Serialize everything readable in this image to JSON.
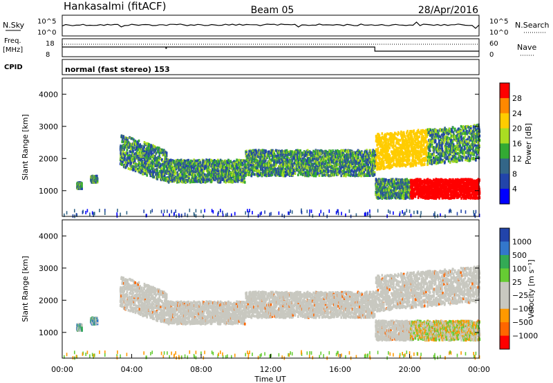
{
  "header": {
    "station": "Hankasalmi (fitACF)",
    "beam": "Beam 05",
    "date": "28/Apr/2016"
  },
  "top_panels": {
    "nsky_label": "N.Sky",
    "nsearch_label": "N.Search",
    "freq_label_line1": "Freq.",
    "freq_label_line2": "[MHz]",
    "nave_label": "Nave",
    "cpid_label": "CPID",
    "cpid_text": "normal (fast stereo) 153",
    "noise_ticks_left": [
      "10^5",
      "10^0"
    ],
    "noise_ticks_right": [
      "10^5",
      "10^0"
    ],
    "freq_ticks_left": [
      "18",
      "8"
    ],
    "nave_ticks_right": [
      "60",
      "0"
    ]
  },
  "chart_data": [
    {
      "type": "heatmap",
      "panel": "power",
      "ylabel": "Slant Range [km]",
      "ylim": [
        200,
        4500
      ],
      "y_ticks": [
        "4000",
        "3000",
        "2000",
        "1000"
      ],
      "colorbar_label": "Power [dB]",
      "colorbar_ticks": [
        "28",
        "24",
        "20",
        "16",
        "12",
        "8",
        "4"
      ],
      "colorbar_colors": [
        "#ff0000",
        "#ff8800",
        "#ffcc00",
        "#aadd22",
        "#33aa33",
        "#336688",
        "#2244aa",
        "#0000ff"
      ],
      "echo_bands_hours_km": [
        {
          "t0": 0.8,
          "t1": 1.1,
          "r0": 1100,
          "r1": 1300
        },
        {
          "t0": 1.6,
          "t1": 2.0,
          "r0": 1300,
          "r1": 1500
        },
        {
          "t0": 3.3,
          "t1": 6.0,
          "r0": 1800,
          "r1": 2800
        },
        {
          "t0": 6.0,
          "t1": 10.5,
          "r0": 1300,
          "r1": 2000
        },
        {
          "t0": 10.5,
          "t1": 18.0,
          "r0": 1500,
          "r1": 2300
        },
        {
          "t0": 18.0,
          "t1": 24.0,
          "r0": 1700,
          "r1": 2800
        },
        {
          "t0": 18.0,
          "t1": 24.0,
          "r0": 800,
          "r1": 1400
        }
      ]
    },
    {
      "type": "heatmap",
      "panel": "velocity",
      "ylabel": "Slant Range [km]",
      "ylim": [
        200,
        4500
      ],
      "y_ticks": [
        "4000",
        "3000",
        "2000",
        "1000"
      ],
      "xlabel": "Time UT",
      "x_ticks": [
        "00:00",
        "04:00",
        "08:00",
        "12:00",
        "16:00",
        "20:00",
        "00:00"
      ],
      "colorbar_label": "Velocity [m s⁻¹]",
      "colorbar_ticks": [
        "1000",
        "500",
        "100",
        "25",
        "−25",
        "−100",
        "−500",
        "−1000"
      ],
      "colorbar_colors": [
        "#2244aa",
        "#3377cc",
        "#33aa55",
        "#66cc33",
        "#c8c8c0",
        "#c8c8c0",
        "#ff9900",
        "#ff6600",
        "#ff0000"
      ]
    }
  ]
}
